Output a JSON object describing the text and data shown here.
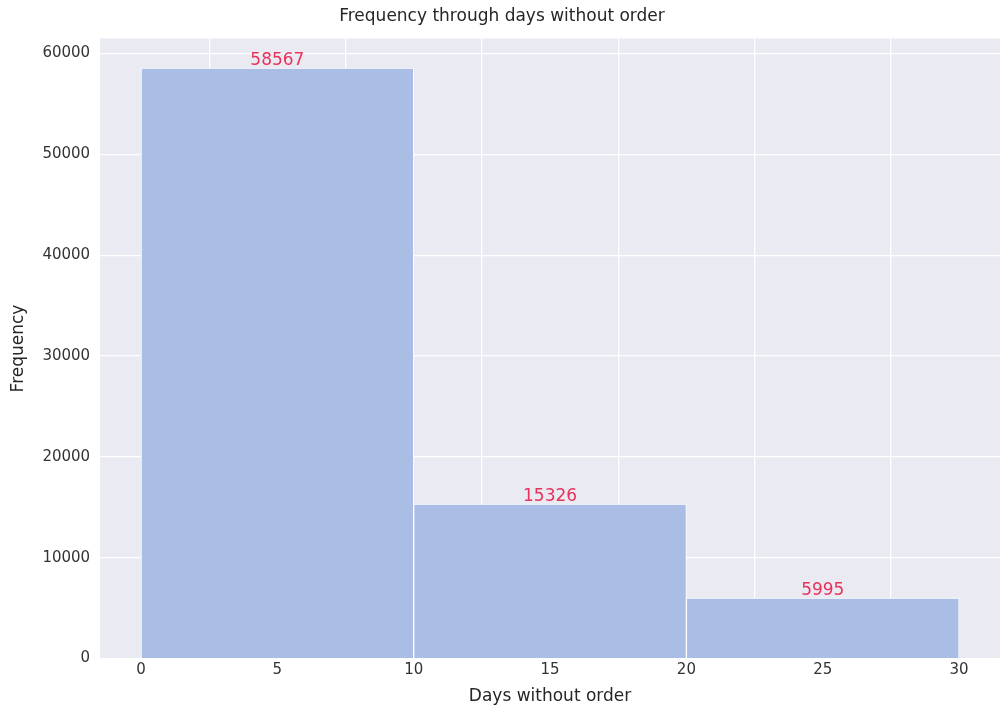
{
  "chart_data": {
    "type": "histogram",
    "title": "Frequency through days without order",
    "xlabel": "Days without order",
    "ylabel": "Frequency",
    "bins": [
      0,
      10,
      20,
      30
    ],
    "values": [
      58567,
      15326,
      5995
    ],
    "color": "#a9bde5",
    "data_labels": true,
    "xlim": [
      -1.5,
      31.5
    ],
    "xticks": [
      0,
      5,
      10,
      15,
      20,
      25,
      30
    ],
    "ylim": [
      0,
      61500
    ],
    "yticks": [
      0,
      10000,
      20000,
      30000,
      40000,
      50000,
      60000
    ],
    "grid": true,
    "legend": false
  }
}
